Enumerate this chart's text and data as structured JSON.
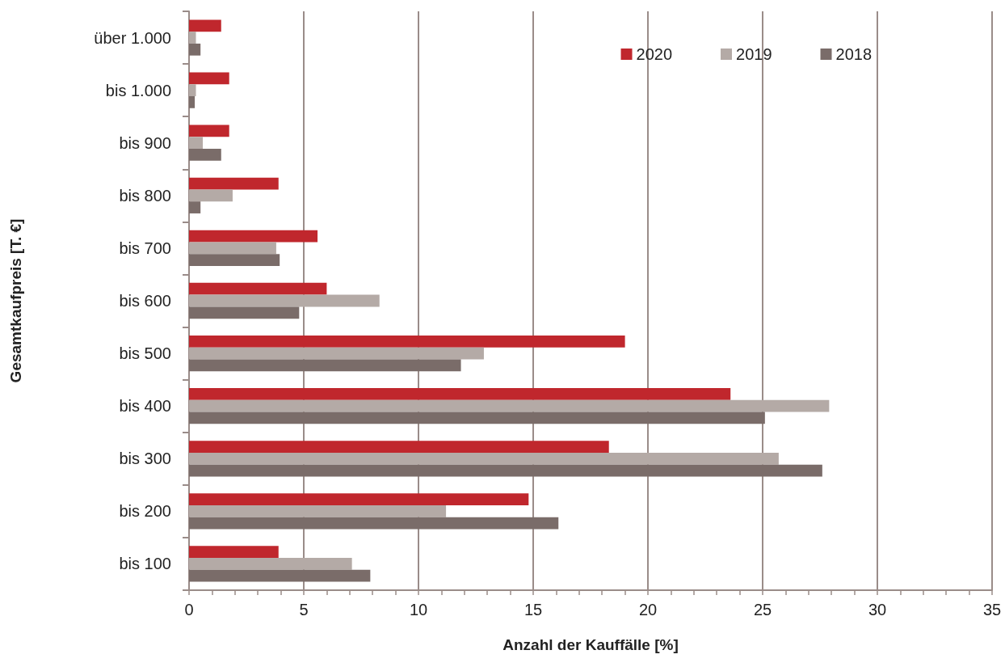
{
  "chart_data": {
    "type": "bar",
    "orientation": "horizontal",
    "xlabel": "Anzahl der Kauffälle [%]",
    "ylabel": "Gesamtkaufpreis [T. €]",
    "categories": [
      "über 1.000",
      "bis 1.000",
      "bis 900",
      "bis 800",
      "bis 700",
      "bis 600",
      "bis 500",
      "bis 400",
      "bis 300",
      "bis 200",
      "bis 100"
    ],
    "series": [
      {
        "name": "2020",
        "color": "#c0272d",
        "values": [
          1.4,
          1.75,
          1.75,
          3.9,
          5.6,
          6.0,
          19.0,
          23.6,
          18.3,
          14.8,
          3.9
        ]
      },
      {
        "name": "2019",
        "color": "#b4aaa6",
        "values": [
          0.3,
          0.3,
          0.6,
          1.9,
          3.8,
          8.3,
          12.85,
          27.9,
          25.7,
          11.2,
          7.1
        ]
      },
      {
        "name": "2018",
        "color": "#7a6c69",
        "values": [
          0.5,
          0.25,
          1.4,
          0.5,
          3.95,
          4.8,
          11.85,
          25.1,
          27.6,
          16.1,
          7.9
        ]
      }
    ],
    "xlim": [
      0,
      35
    ],
    "xticks": [
      0,
      {
        "value": 1,
        "label": null
      },
      {
        "value": 2,
        "label": null
      },
      {
        "value": 3,
        "label": null
      },
      {
        "value": 4,
        "label": null
      },
      5,
      {
        "value": 6,
        "label": null
      },
      {
        "value": 7,
        "label": null
      },
      {
        "value": 8,
        "label": null
      },
      {
        "value": 9,
        "label": null
      },
      10,
      {
        "value": 11,
        "label": null
      },
      {
        "value": 12,
        "label": null
      },
      {
        "value": 13,
        "label": null
      },
      {
        "value": 14,
        "label": null
      },
      15,
      {
        "value": 16,
        "label": null
      },
      {
        "value": 17,
        "label": null
      },
      {
        "value": 18,
        "label": null
      },
      {
        "value": 19,
        "label": null
      },
      20,
      {
        "value": 21,
        "label": null
      },
      {
        "value": 22,
        "label": null
      },
      {
        "value": 23,
        "label": null
      },
      {
        "value": 24,
        "label": null
      },
      25,
      {
        "value": 26,
        "label": null
      },
      {
        "value": 27,
        "label": null
      },
      {
        "value": 28,
        "label": null
      },
      {
        "value": 29,
        "label": null
      },
      30,
      {
        "value": 31,
        "label": null
      },
      {
        "value": 32,
        "label": null
      },
      {
        "value": 33,
        "label": null
      },
      {
        "value": 34,
        "label": null
      },
      35
    ],
    "grid": "x",
    "legend": "top right"
  }
}
